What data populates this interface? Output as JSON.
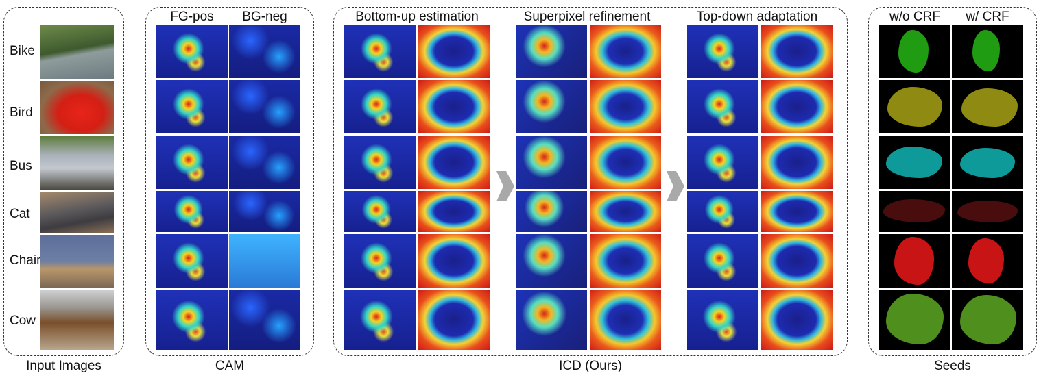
{
  "panels": {
    "input": {
      "caption": "Input Images"
    },
    "cam": {
      "caption": "CAM",
      "columns": [
        "FG-pos",
        "BG-neg"
      ]
    },
    "icd": {
      "caption": "ICD (Ours)",
      "stages": [
        "Bottom-up estimation",
        "Superpixel refinement",
        "Top-down adaptation"
      ]
    },
    "seeds": {
      "caption": "Seeds",
      "columns": [
        "w/o CRF",
        "w/ CRF"
      ]
    }
  },
  "rows": [
    {
      "label": "Bike"
    },
    {
      "label": "Bird"
    },
    {
      "label": "Bus"
    },
    {
      "label": "Cat"
    },
    {
      "label": "Chair"
    },
    {
      "label": "Cow"
    }
  ],
  "colors": {
    "seed_bike": "#1f9c12",
    "seed_bird": "#8f8a12",
    "seed_bus": "#0f9a9a",
    "seed_cat": "#4a0d0d",
    "seed_chair": "#c81414",
    "seed_cow": "#4f8f1e"
  }
}
